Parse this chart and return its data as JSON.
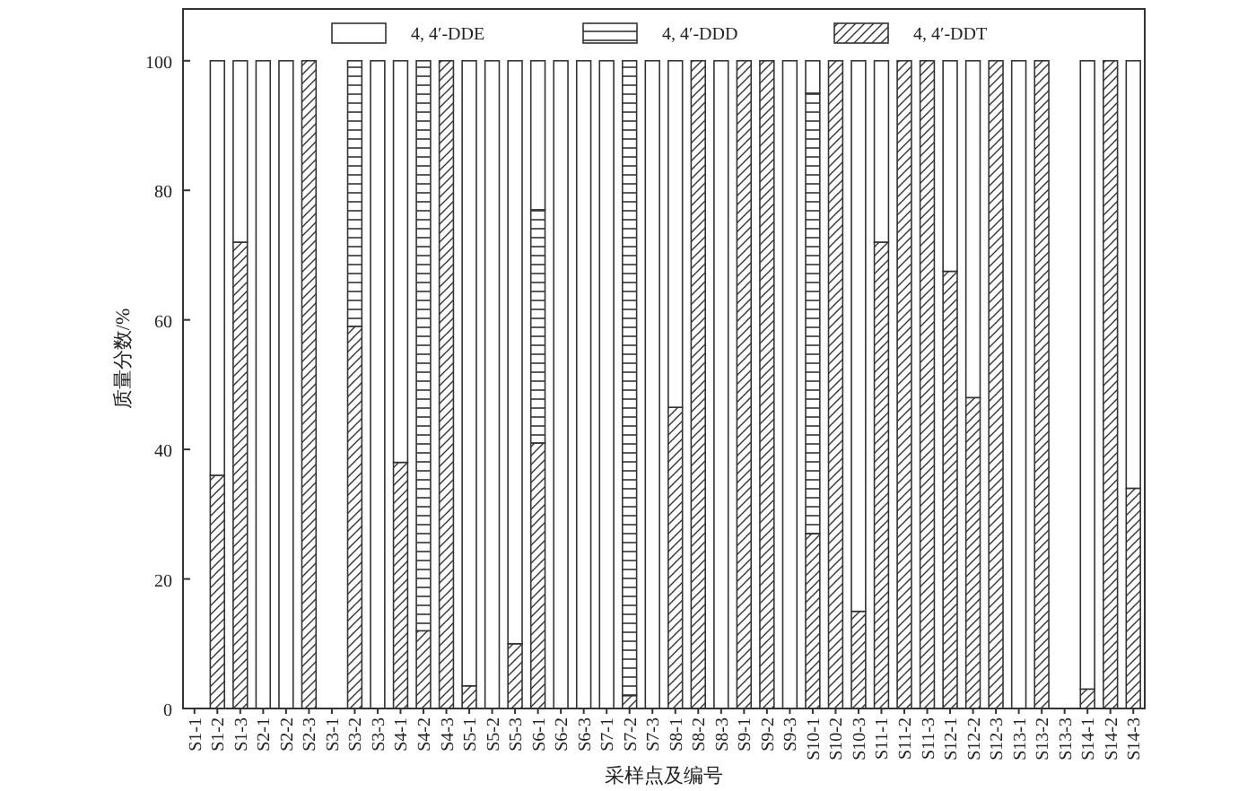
{
  "chart_data": {
    "type": "bar",
    "stacked": true,
    "xlabel": "采样点及编号",
    "ylabel": "质量分数/%",
    "categories": [
      "S1-1",
      "S1-2",
      "S1-3",
      "S2-1",
      "S2-2",
      "S2-3",
      "S3-1",
      "S3-2",
      "S3-3",
      "S4-1",
      "S4-2",
      "S4-3",
      "S5-1",
      "S5-2",
      "S5-3",
      "S6-1",
      "S6-2",
      "S6-3",
      "S7-1",
      "S7-2",
      "S7-3",
      "S8-1",
      "S8-2",
      "S8-3",
      "S9-1",
      "S9-2",
      "S9-3",
      "S10-1",
      "S10-2",
      "S10-3",
      "S11-1",
      "S11-2",
      "S11-3",
      "S12-1",
      "S12-2",
      "S12-3",
      "S13-1",
      "S13-2",
      "S13-3",
      "S14-1",
      "S14-2",
      "S14-3"
    ],
    "series": [
      {
        "name": "4, 4′-DDT",
        "color": "#333333",
        "values": [
          0,
          36,
          72,
          0,
          0,
          100,
          0,
          59,
          0,
          38,
          12,
          100,
          3.5,
          0,
          10,
          41,
          0,
          0,
          0,
          2,
          0,
          46.5,
          100,
          0,
          100,
          100,
          0,
          27,
          100,
          15,
          72,
          100,
          100,
          67.5,
          48,
          100,
          0,
          100,
          0,
          3,
          100,
          34
        ]
      },
      {
        "name": "4, 4′-DDD",
        "color": "#333333",
        "values": [
          0,
          0,
          0,
          0,
          0,
          0,
          0,
          41,
          0,
          0,
          88,
          0,
          0,
          0,
          0,
          36,
          0,
          0,
          0,
          98,
          0,
          0,
          0,
          0,
          0,
          0,
          0,
          68,
          0,
          0,
          0,
          0,
          0,
          0,
          0,
          0,
          0,
          0,
          0,
          0,
          0,
          0
        ]
      },
      {
        "name": "4, 4′-DDE",
        "color": "#333333",
        "values": [
          0,
          64,
          28,
          100,
          100,
          0,
          0,
          0,
          100,
          62,
          0,
          0,
          96.5,
          100,
          90,
          23,
          100,
          100,
          100,
          0,
          100,
          53.5,
          0,
          100,
          0,
          0,
          100,
          5,
          0,
          85,
          28,
          0,
          0,
          32.5,
          52,
          0,
          100,
          0,
          0,
          97,
          0,
          66
        ]
      }
    ],
    "ylim": [
      0,
      108
    ],
    "yticks": [
      0,
      20,
      40,
      60,
      80,
      100
    ],
    "grid": false,
    "legend": "top"
  }
}
